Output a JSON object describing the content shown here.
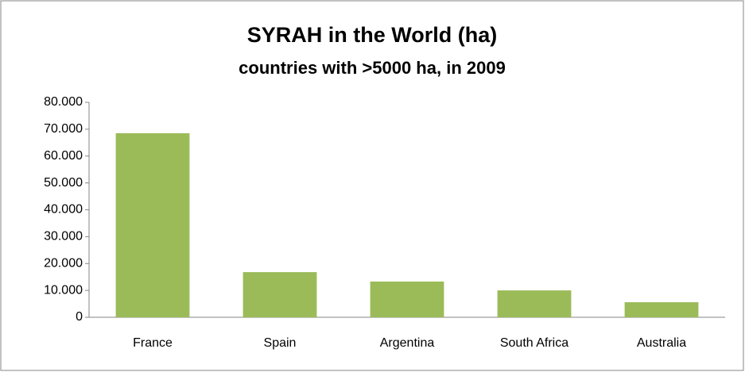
{
  "chart_data": {
    "type": "bar",
    "title": "SYRAH in the World (ha)",
    "subtitle": "countries with >5000 ha, in 2009",
    "categories": [
      "France",
      "Spain",
      "Argentina",
      "South Africa",
      "Australia"
    ],
    "values": [
      68500,
      16800,
      13300,
      10000,
      5600
    ],
    "color": "#9bbb59",
    "ylim": [
      0,
      80000
    ],
    "yticks": [
      0,
      {
        "value": 10000,
        "label": "10.000"
      },
      {
        "value": 20000,
        "label": "20.000"
      },
      {
        "value": 30000,
        "label": "30.000"
      },
      {
        "value": 40000,
        "label": "40.000"
      },
      {
        "value": 50000,
        "label": "50.000"
      },
      {
        "value": 60000,
        "label": "60.000"
      },
      {
        "value": 70000,
        "label": "70.000"
      },
      {
        "value": 80000,
        "label": "80.000"
      }
    ],
    "grid": false
  }
}
